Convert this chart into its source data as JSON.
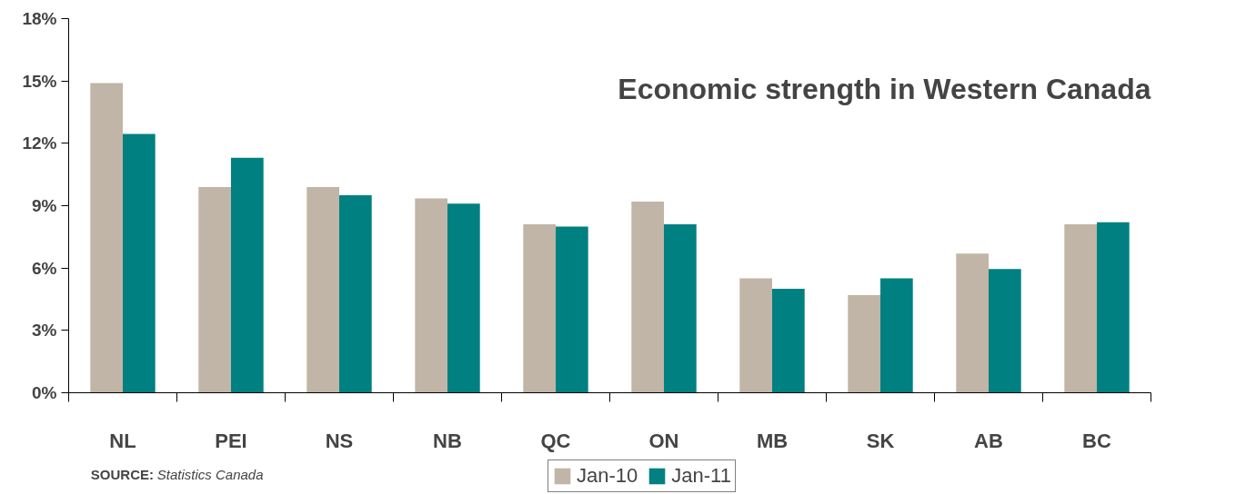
{
  "chart_data": {
    "type": "bar",
    "categories": [
      "NL",
      "PEI",
      "NS",
      "NB",
      "QC",
      "ON",
      "MB",
      "SK",
      "AB",
      "BC"
    ],
    "series": [
      {
        "name": "Jan-10",
        "color": "#c0b5a6",
        "values": [
          14.9,
          9.9,
          9.9,
          9.35,
          8.1,
          9.2,
          5.5,
          4.7,
          6.7,
          8.1
        ]
      },
      {
        "name": "Jan-11",
        "color": "#008080",
        "values": [
          12.45,
          11.3,
          9.5,
          9.1,
          8.0,
          8.1,
          5.0,
          5.5,
          5.95,
          8.2
        ]
      }
    ],
    "ylim": [
      0,
      18
    ],
    "yticks": [
      {
        "value": 0,
        "label": "0%"
      },
      {
        "value": 3,
        "label": "3%"
      },
      {
        "value": 6,
        "label": "6%"
      },
      {
        "value": 9,
        "label": "9%"
      },
      {
        "value": 12,
        "label": "12%"
      },
      {
        "value": 15,
        "label": "15%"
      },
      {
        "value": 18,
        "label": "18%"
      }
    ],
    "grid": false,
    "legend": "bottom",
    "annotations": [
      "Economic strength in Western Canada",
      "SOURCE:",
      "Statistics Canada"
    ]
  }
}
